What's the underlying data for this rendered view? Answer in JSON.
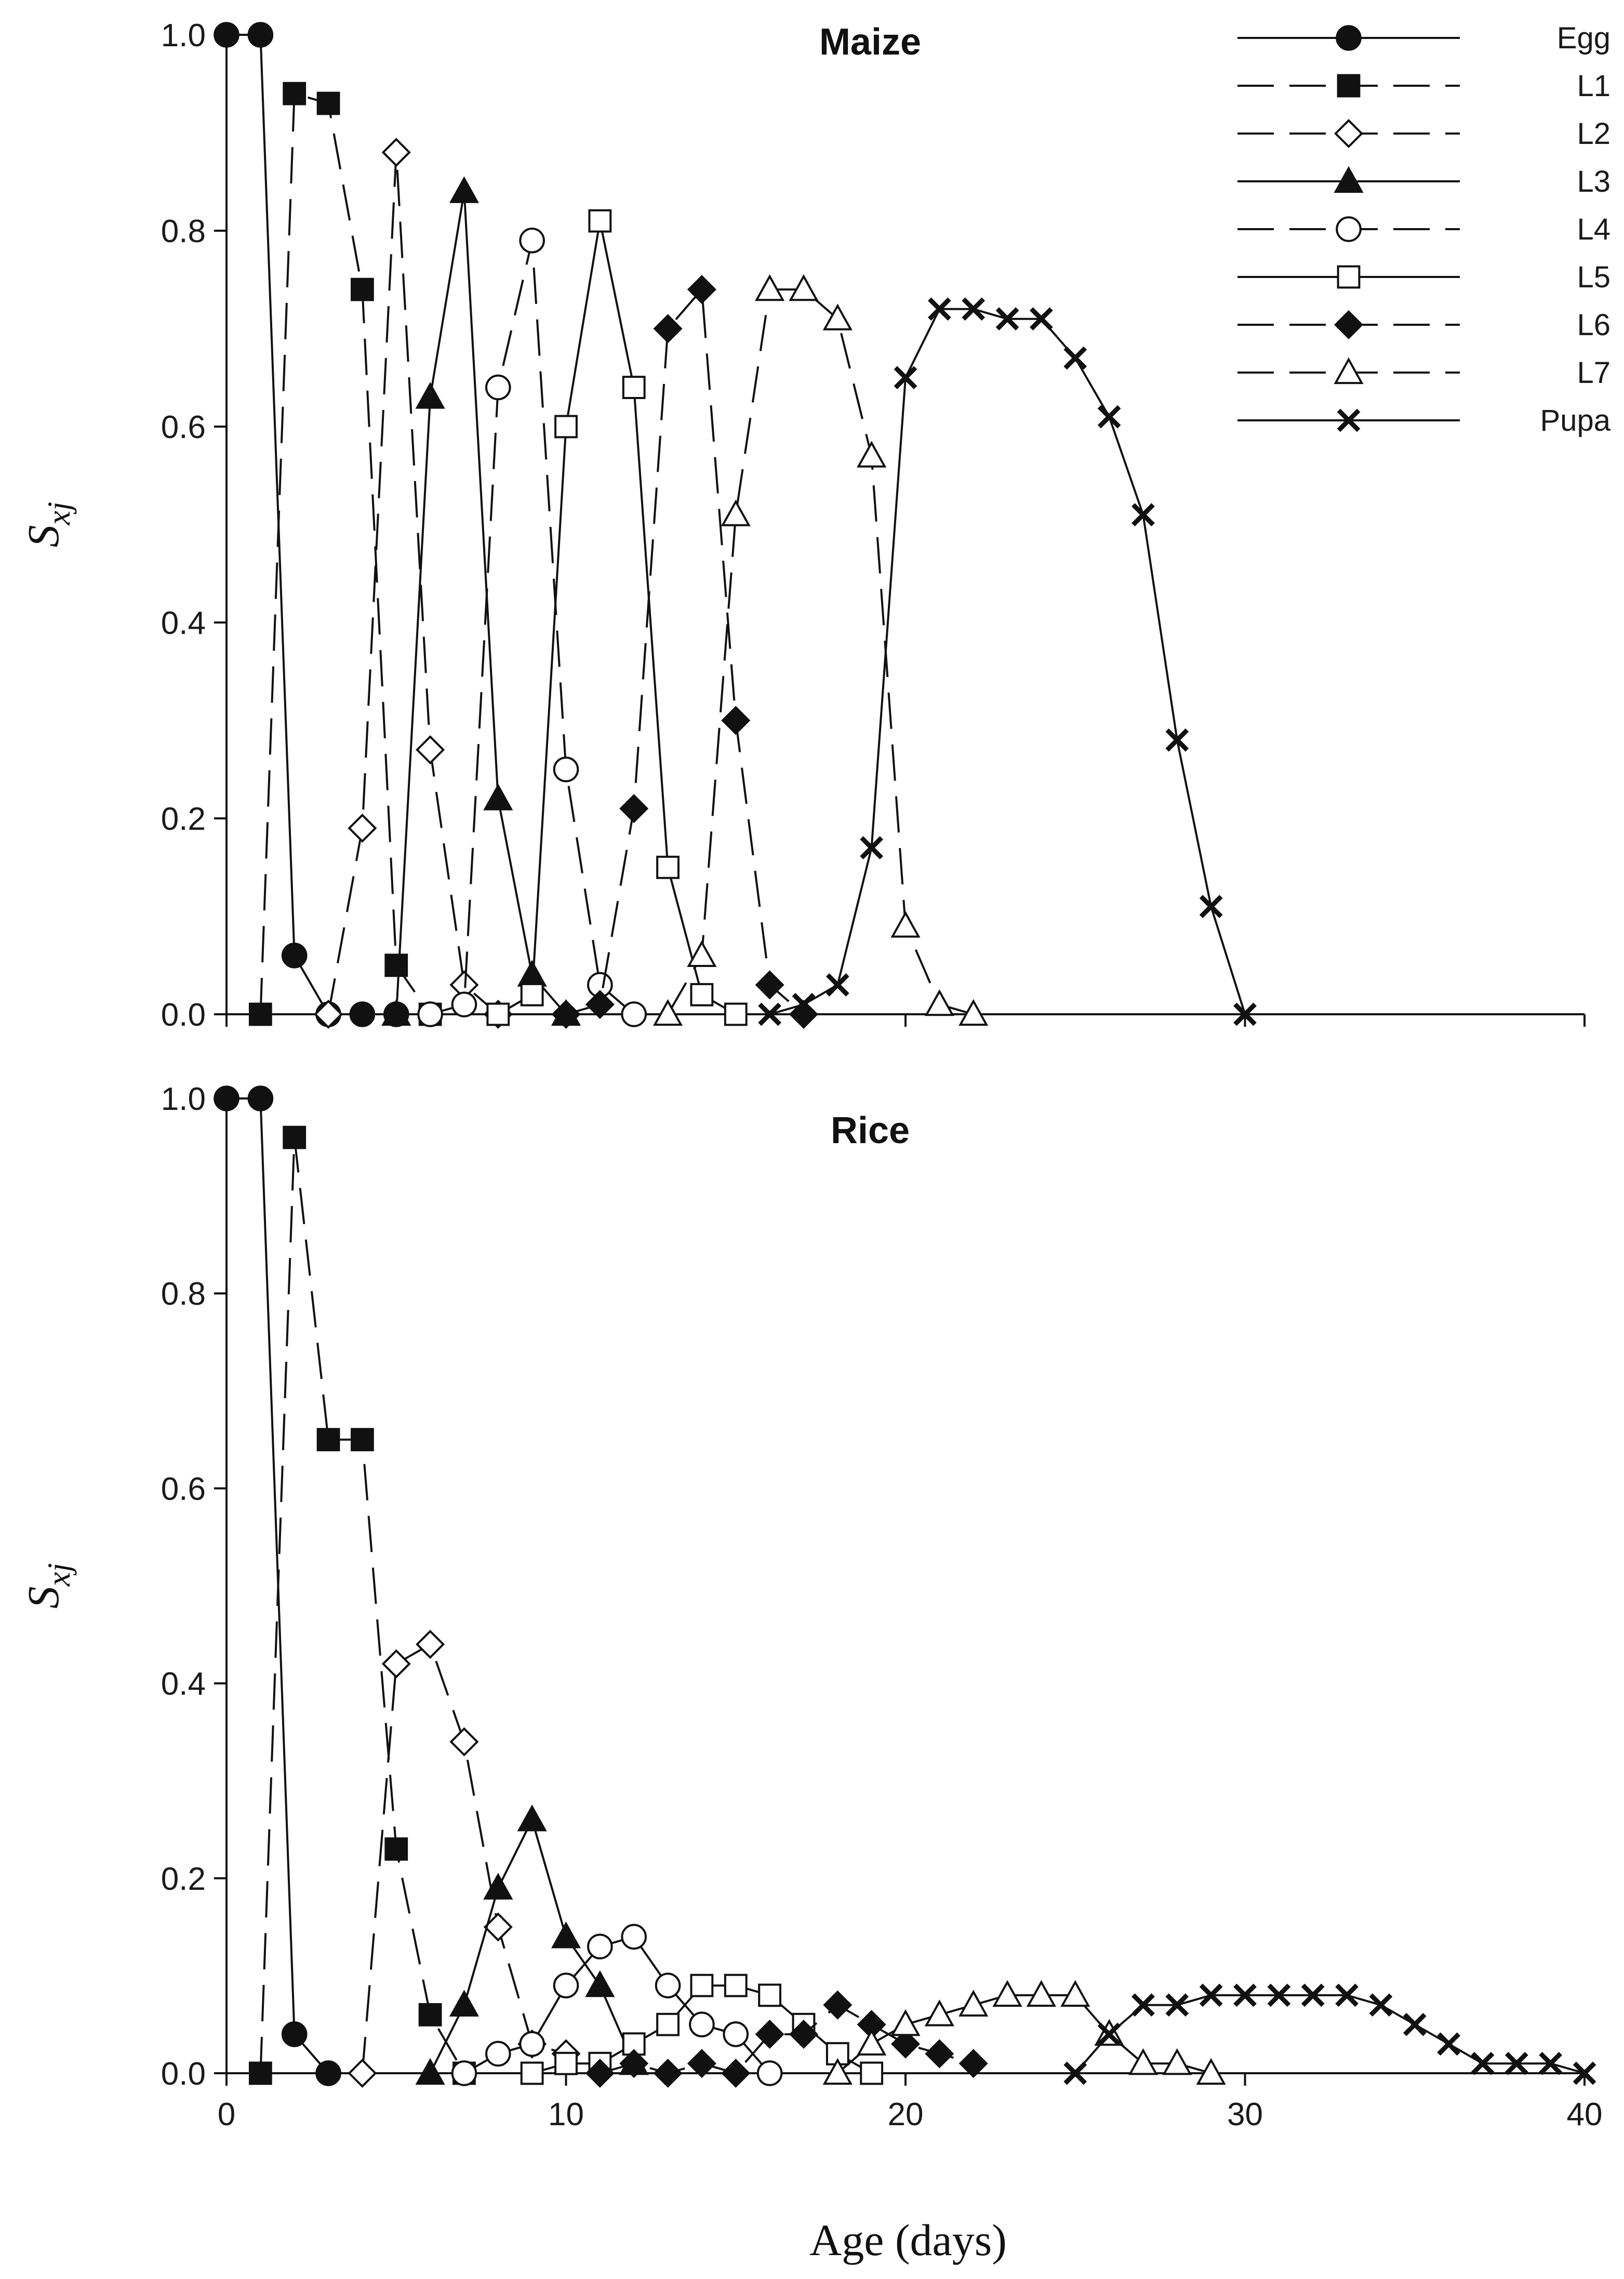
{
  "chart_data": [
    {
      "type": "line",
      "title": "Maize",
      "xlabel": "Age (days)",
      "ylabel": "S",
      "ylabel_sub": "xj",
      "xlim": [
        0,
        40
      ],
      "ylim": [
        0,
        1
      ],
      "xticks": [
        "0",
        "10",
        "20",
        "30",
        "40"
      ],
      "yticks": [
        "0.0",
        "0.2",
        "0.4",
        "0.6",
        "0.8",
        "1.0"
      ],
      "legend_position": "top-right",
      "series": [
        {
          "name": "Egg",
          "marker": "circle-filled",
          "dash": "solid",
          "x": [
            0,
            1,
            2,
            3,
            4,
            5
          ],
          "y": [
            1.0,
            1.0,
            0.06,
            0.0,
            0.0,
            0.0
          ]
        },
        {
          "name": "L1",
          "marker": "square-filled",
          "dash": "dashed",
          "x": [
            1,
            2,
            3,
            4,
            5,
            6
          ],
          "y": [
            0.0,
            0.94,
            0.93,
            0.74,
            0.05,
            0.0
          ]
        },
        {
          "name": "L2",
          "marker": "diamond-open",
          "dash": "dashed",
          "x": [
            3,
            4,
            5,
            6,
            7,
            8
          ],
          "y": [
            0.0,
            0.19,
            0.88,
            0.27,
            0.03,
            0.0
          ]
        },
        {
          "name": "L3",
          "marker": "triangle-filled",
          "dash": "solid",
          "x": [
            5,
            6,
            7,
            8,
            9,
            10
          ],
          "y": [
            0.0,
            0.63,
            0.84,
            0.22,
            0.04,
            0.0
          ]
        },
        {
          "name": "L4",
          "marker": "circle-open",
          "dash": "dashed",
          "x": [
            6,
            7,
            8,
            9,
            10,
            11,
            12
          ],
          "y": [
            0.0,
            0.01,
            0.64,
            0.79,
            0.25,
            0.03,
            0.0
          ]
        },
        {
          "name": "L5",
          "marker": "square-open",
          "dash": "solid",
          "x": [
            8,
            9,
            10,
            11,
            12,
            13,
            14,
            15
          ],
          "y": [
            0.0,
            0.02,
            0.6,
            0.81,
            0.64,
            0.15,
            0.02,
            0.0
          ]
        },
        {
          "name": "L6",
          "marker": "diamond-filled",
          "dash": "dashed",
          "x": [
            10,
            11,
            12,
            13,
            14,
            15,
            16,
            17
          ],
          "y": [
            0.0,
            0.01,
            0.21,
            0.7,
            0.74,
            0.3,
            0.03,
            0.0
          ]
        },
        {
          "name": "L7",
          "marker": "triangle-open",
          "dash": "dashed",
          "x": [
            13,
            14,
            15,
            16,
            17,
            18,
            19,
            20,
            21,
            22
          ],
          "y": [
            0.0,
            0.06,
            0.51,
            0.74,
            0.74,
            0.71,
            0.57,
            0.09,
            0.01,
            0.0
          ]
        },
        {
          "name": "Pupa",
          "marker": "x",
          "dash": "solid",
          "x": [
            16,
            17,
            18,
            19,
            20,
            21,
            22,
            23,
            24,
            25,
            26,
            27,
            28,
            29,
            30
          ],
          "y": [
            0.0,
            0.01,
            0.03,
            0.17,
            0.65,
            0.72,
            0.72,
            0.71,
            0.71,
            0.67,
            0.61,
            0.51,
            0.28,
            0.11,
            0.0
          ]
        }
      ]
    },
    {
      "type": "line",
      "title": "Rice",
      "xlabel": "Age (days)",
      "ylabel": "S",
      "ylabel_sub": "xj",
      "xlim": [
        0,
        40
      ],
      "ylim": [
        0,
        1
      ],
      "xticks": [
        "0",
        "10",
        "20",
        "30",
        "40"
      ],
      "yticks": [
        "0.0",
        "0.2",
        "0.4",
        "0.6",
        "0.8",
        "1.0"
      ],
      "series": [
        {
          "name": "Egg",
          "marker": "circle-filled",
          "dash": "solid",
          "x": [
            0,
            1,
            2,
            3
          ],
          "y": [
            1.0,
            1.0,
            0.04,
            0.0
          ]
        },
        {
          "name": "L1",
          "marker": "square-filled",
          "dash": "dashed",
          "x": [
            1,
            2,
            3,
            4,
            5,
            6,
            7
          ],
          "y": [
            0.0,
            0.96,
            0.65,
            0.65,
            0.23,
            0.06,
            0.0
          ]
        },
        {
          "name": "L2",
          "marker": "diamond-open",
          "dash": "dashed",
          "x": [
            4,
            5,
            6,
            7,
            8,
            9,
            10
          ],
          "y": [
            0.0,
            0.42,
            0.44,
            0.34,
            0.15,
            0.03,
            0.02
          ]
        },
        {
          "name": "L3",
          "marker": "triangle-filled",
          "dash": "solid",
          "x": [
            6,
            7,
            8,
            9,
            10,
            11,
            12
          ],
          "y": [
            0.0,
            0.07,
            0.19,
            0.26,
            0.14,
            0.09,
            0.01
          ]
        },
        {
          "name": "L4",
          "marker": "circle-open",
          "dash": "solid",
          "x": [
            7,
            8,
            9,
            10,
            11,
            12,
            13,
            14,
            15,
            16
          ],
          "y": [
            0.0,
            0.02,
            0.03,
            0.09,
            0.13,
            0.14,
            0.09,
            0.05,
            0.04,
            0.0
          ]
        },
        {
          "name": "L5",
          "marker": "square-open",
          "dash": "solid",
          "x": [
            9,
            10,
            11,
            12,
            13,
            14,
            15,
            16,
            17,
            18,
            19
          ],
          "y": [
            0.0,
            0.01,
            0.01,
            0.03,
            0.05,
            0.09,
            0.09,
            0.08,
            0.05,
            0.02,
            0.0
          ]
        },
        {
          "name": "L6",
          "marker": "diamond-filled",
          "dash": "dashed",
          "x": [
            11,
            12,
            13,
            14,
            15,
            16,
            17,
            18,
            19,
            20,
            21,
            22
          ],
          "y": [
            0.0,
            0.01,
            0.0,
            0.01,
            0.0,
            0.04,
            0.04,
            0.07,
            0.05,
            0.03,
            0.02,
            0.01
          ]
        },
        {
          "name": "L7",
          "marker": "triangle-open",
          "dash": "solid",
          "x": [
            18,
            19,
            20,
            21,
            22,
            23,
            24,
            25,
            26,
            27,
            28,
            29
          ],
          "y": [
            0.0,
            0.03,
            0.05,
            0.06,
            0.07,
            0.08,
            0.08,
            0.08,
            0.04,
            0.01,
            0.01,
            0.0
          ]
        },
        {
          "name": "Pupa",
          "marker": "x",
          "dash": "solid",
          "x": [
            25,
            26,
            27,
            28,
            29,
            30,
            31,
            32,
            33,
            34,
            35,
            36,
            37,
            38,
            39,
            40
          ],
          "y": [
            0.0,
            0.04,
            0.07,
            0.07,
            0.08,
            0.08,
            0.08,
            0.08,
            0.08,
            0.07,
            0.05,
            0.03,
            0.01,
            0.01,
            0.01,
            0.0
          ]
        }
      ]
    }
  ]
}
